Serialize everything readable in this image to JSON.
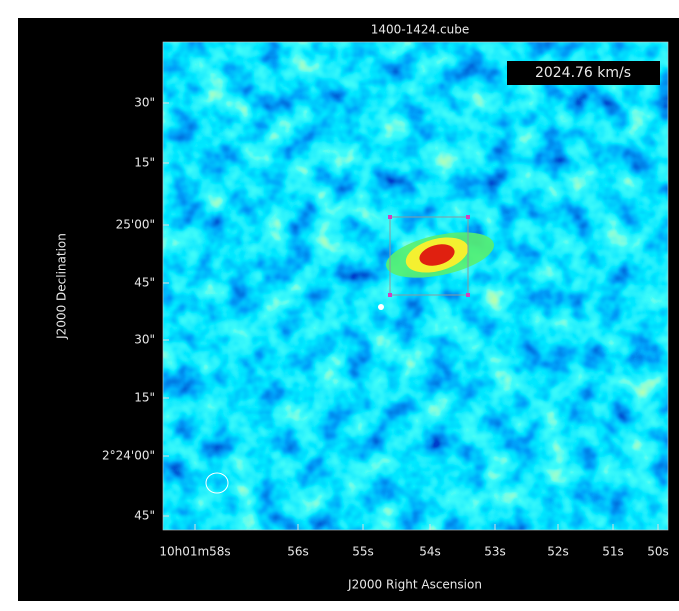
{
  "title": "1400-1424.cube",
  "velocity_label": "2024.76 km/s",
  "y_axis": {
    "label": "J2000 Declination",
    "ticks": [
      "30\"",
      "15\"",
      "25'00\"",
      "45\"",
      "30\"",
      "15\"",
      "2°24'00\"",
      "45\""
    ]
  },
  "x_axis": {
    "label": "J2000 Right Ascension",
    "ticks": [
      "10h01m58s",
      "56s",
      "55s",
      "54s",
      "53s",
      "52s",
      "51s",
      "50s"
    ]
  }
}
